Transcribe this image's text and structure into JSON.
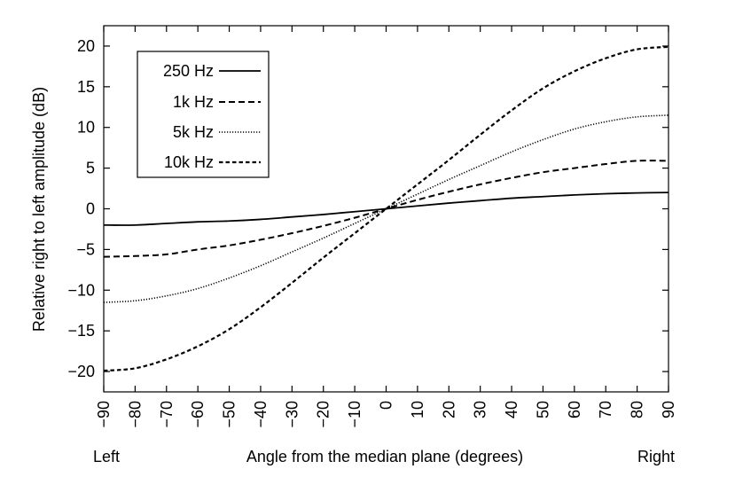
{
  "chart_data": {
    "type": "line",
    "title": "",
    "xlabel": "Angle from the median plane (degrees)",
    "xlabel_left": "Left",
    "xlabel_right": "Right",
    "ylabel": "Relative right to left amplitude (dB)",
    "xlim": [
      -90,
      90
    ],
    "ylim": [
      -22.5,
      22.5
    ],
    "x_ticks": [
      -90,
      -80,
      -70,
      -60,
      -50,
      -40,
      -30,
      -20,
      -10,
      0,
      10,
      20,
      30,
      40,
      50,
      60,
      70,
      80,
      90
    ],
    "x_tick_labels": [
      "−90",
      "−80",
      "−70",
      "−60",
      "−50",
      "−40",
      "−30",
      "−20",
      "−10",
      "0",
      "10",
      "20",
      "30",
      "40",
      "50",
      "60",
      "70",
      "80",
      "90"
    ],
    "y_ticks": [
      -20,
      -15,
      -10,
      -5,
      0,
      5,
      10,
      15,
      20
    ],
    "y_tick_labels": [
      "−20",
      "−15",
      "−10",
      "−5",
      "0",
      "5",
      "10",
      "15",
      "20"
    ],
    "grid": false,
    "legend_position": "top-left",
    "x": [
      -90,
      -80,
      -70,
      -60,
      -50,
      -40,
      -30,
      -20,
      -10,
      0,
      10,
      20,
      30,
      40,
      50,
      60,
      70,
      80,
      90
    ],
    "series": [
      {
        "name": "250 Hz",
        "style": "solid",
        "values": [
          -2.0,
          -2.0,
          -1.8,
          -1.6,
          -1.5,
          -1.3,
          -1.0,
          -0.7,
          -0.35,
          0,
          0.35,
          0.7,
          1.0,
          1.3,
          1.5,
          1.7,
          1.85,
          1.95,
          2.0
        ]
      },
      {
        "name": "1k Hz",
        "style": "dashed",
        "values": [
          -5.9,
          -5.8,
          -5.6,
          -5.0,
          -4.5,
          -3.8,
          -3.0,
          -2.1,
          -1.1,
          0,
          1.1,
          2.1,
          3.0,
          3.8,
          4.5,
          5.0,
          5.5,
          5.9,
          5.9
        ]
      },
      {
        "name": "5k Hz",
        "style": "dotted",
        "values": [
          -11.5,
          -11.3,
          -10.7,
          -9.8,
          -8.5,
          -7.0,
          -5.3,
          -3.6,
          -1.8,
          0,
          1.8,
          3.6,
          5.3,
          7.0,
          8.5,
          9.8,
          10.7,
          11.3,
          11.5
        ]
      },
      {
        "name": "10k Hz",
        "style": "short-dash",
        "values": [
          -19.9,
          -19.6,
          -18.5,
          -16.9,
          -14.8,
          -12.1,
          -9.1,
          -6.0,
          -3.0,
          0,
          3.0,
          6.0,
          9.1,
          12.1,
          14.8,
          16.9,
          18.5,
          19.6,
          19.9
        ]
      }
    ]
  }
}
